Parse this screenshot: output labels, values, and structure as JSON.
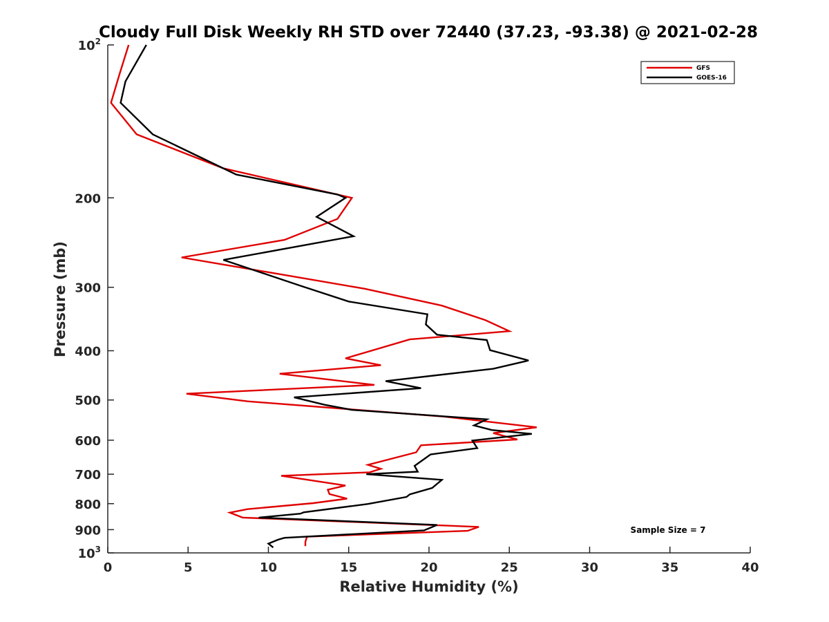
{
  "chart_data": {
    "type": "line",
    "title": "Cloudy Full Disk Weekly RH STD over 72440 (37.23, -93.38) @ 2021-02-28",
    "xlabel": "Relative Humidity (%)",
    "ylabel": "Pressure (mb)",
    "xlim": [
      0,
      40
    ],
    "ylim": [
      100,
      1000
    ],
    "y_scale": "log",
    "y_reversed": true,
    "grid": false,
    "legend_position": "top-right",
    "annotation": "Sample Size = 7",
    "x_ticks": [
      0,
      5,
      10,
      15,
      20,
      25,
      30,
      35,
      40
    ],
    "y_ticks": [
      {
        "value": 100,
        "label": "10",
        "sup": "2"
      },
      {
        "value": 200,
        "label": "200",
        "sup": ""
      },
      {
        "value": 300,
        "label": "300",
        "sup": ""
      },
      {
        "value": 400,
        "label": "400",
        "sup": ""
      },
      {
        "value": 500,
        "label": "500",
        "sup": ""
      },
      {
        "value": 600,
        "label": "600",
        "sup": ""
      },
      {
        "value": 700,
        "label": "700",
        "sup": ""
      },
      {
        "value": 800,
        "label": "800",
        "sup": ""
      },
      {
        "value": 900,
        "label": "900",
        "sup": ""
      },
      {
        "value": 1000,
        "label": "10",
        "sup": "3"
      }
    ],
    "series": [
      {
        "name": "GFS",
        "color": "#e00000",
        "points": [
          [
            1.3,
            100
          ],
          [
            0.7,
            115
          ],
          [
            0.2,
            130
          ],
          [
            1.8,
            150
          ],
          [
            7.2,
            175
          ],
          [
            15.2,
            200
          ],
          [
            14.3,
            220
          ],
          [
            11.0,
            242
          ],
          [
            4.6,
            262
          ],
          [
            10.8,
            283
          ],
          [
            16.0,
            302
          ],
          [
            20.8,
            326
          ],
          [
            23.5,
            348
          ],
          [
            25.0,
            366
          ],
          [
            18.8,
            380
          ],
          [
            14.8,
            414
          ],
          [
            17.0,
            427
          ],
          [
            10.7,
            444
          ],
          [
            16.6,
            467
          ],
          [
            4.9,
            486
          ],
          [
            8.7,
            503
          ],
          [
            20.9,
            539
          ],
          [
            26.7,
            566
          ],
          [
            24.0,
            581
          ],
          [
            25.5,
            598
          ],
          [
            19.5,
            614
          ],
          [
            19.2,
            634
          ],
          [
            16.2,
            671
          ],
          [
            17.0,
            683
          ],
          [
            16.3,
            694
          ],
          [
            10.8,
            705
          ],
          [
            14.8,
            737
          ],
          [
            13.7,
            751
          ],
          [
            13.8,
            766
          ],
          [
            14.9,
            782
          ],
          [
            12.8,
            798
          ],
          [
            8.7,
            820
          ],
          [
            7.6,
            833
          ],
          [
            8.4,
            852
          ],
          [
            23.1,
            889
          ],
          [
            22.4,
            905
          ],
          [
            12.4,
            929
          ],
          [
            12.3,
            952
          ],
          [
            12.3,
            970
          ]
        ]
      },
      {
        "name": "GOES-16",
        "color": "#000000",
        "points": [
          [
            2.4,
            100
          ],
          [
            1.1,
            118
          ],
          [
            0.8,
            130
          ],
          [
            2.8,
            150
          ],
          [
            8.0,
            180
          ],
          [
            14.3,
            197
          ],
          [
            14.8,
            200
          ],
          [
            13.0,
            218
          ],
          [
            15.3,
            238
          ],
          [
            7.2,
            265
          ],
          [
            12.0,
            298
          ],
          [
            15.0,
            320
          ],
          [
            19.9,
            339
          ],
          [
            19.8,
            355
          ],
          [
            20.5,
            372
          ],
          [
            23.6,
            381
          ],
          [
            23.8,
            399
          ],
          [
            26.2,
            418
          ],
          [
            24.0,
            434
          ],
          [
            17.3,
            459
          ],
          [
            19.5,
            474
          ],
          [
            11.6,
            494
          ],
          [
            13.5,
            511
          ],
          [
            15.2,
            523
          ],
          [
            23.6,
            546
          ],
          [
            22.8,
            561
          ],
          [
            23.9,
            573
          ],
          [
            26.4,
            583
          ],
          [
            22.7,
            601
          ],
          [
            23.0,
            622
          ],
          [
            20.1,
            640
          ],
          [
            19.1,
            674
          ],
          [
            19.3,
            692
          ],
          [
            16.1,
            700
          ],
          [
            20.8,
            718
          ],
          [
            20.2,
            745
          ],
          [
            18.8,
            767
          ],
          [
            18.6,
            776
          ],
          [
            16.2,
            801
          ],
          [
            12.2,
            832
          ],
          [
            12.0,
            837
          ],
          [
            9.4,
            852
          ],
          [
            20.5,
            881
          ],
          [
            19.7,
            903
          ],
          [
            11.0,
            934
          ],
          [
            10.6,
            942
          ],
          [
            10.0,
            959
          ],
          [
            10.3,
            976
          ]
        ]
      }
    ]
  }
}
